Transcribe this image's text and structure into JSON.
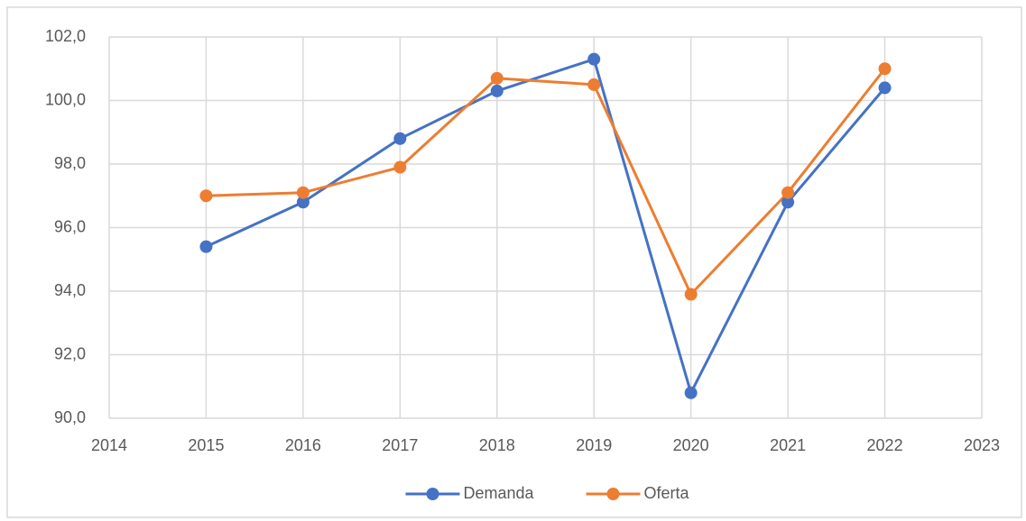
{
  "chart_data": {
    "type": "line",
    "x": [
      2015,
      2016,
      2017,
      2018,
      2019,
      2020,
      2021,
      2022
    ],
    "series": [
      {
        "name": "Demanda",
        "color": "#4472c4",
        "values": [
          95.4,
          96.8,
          98.8,
          100.3,
          101.3,
          90.8,
          96.8,
          100.4
        ]
      },
      {
        "name": "Oferta",
        "color": "#ed7d31",
        "values": [
          97.0,
          97.1,
          97.9,
          100.7,
          100.5,
          93.9,
          97.1,
          101.0
        ]
      }
    ],
    "xlim": [
      2014,
      2023
    ],
    "xticks": [
      2014,
      2015,
      2016,
      2017,
      2018,
      2019,
      2020,
      2021,
      2022,
      2023
    ],
    "ylim": [
      90,
      102
    ],
    "yticks": [
      {
        "value": 90,
        "label": "90,0"
      },
      {
        "value": 92,
        "label": "92,0"
      },
      {
        "value": 94,
        "label": "94,0"
      },
      {
        "value": 96,
        "label": "96,0"
      },
      {
        "value": 98,
        "label": "98,0"
      },
      {
        "value": 100,
        "label": "100,0"
      },
      {
        "value": 102,
        "label": "102,0"
      }
    ],
    "grid": true,
    "legend": "bottom"
  }
}
